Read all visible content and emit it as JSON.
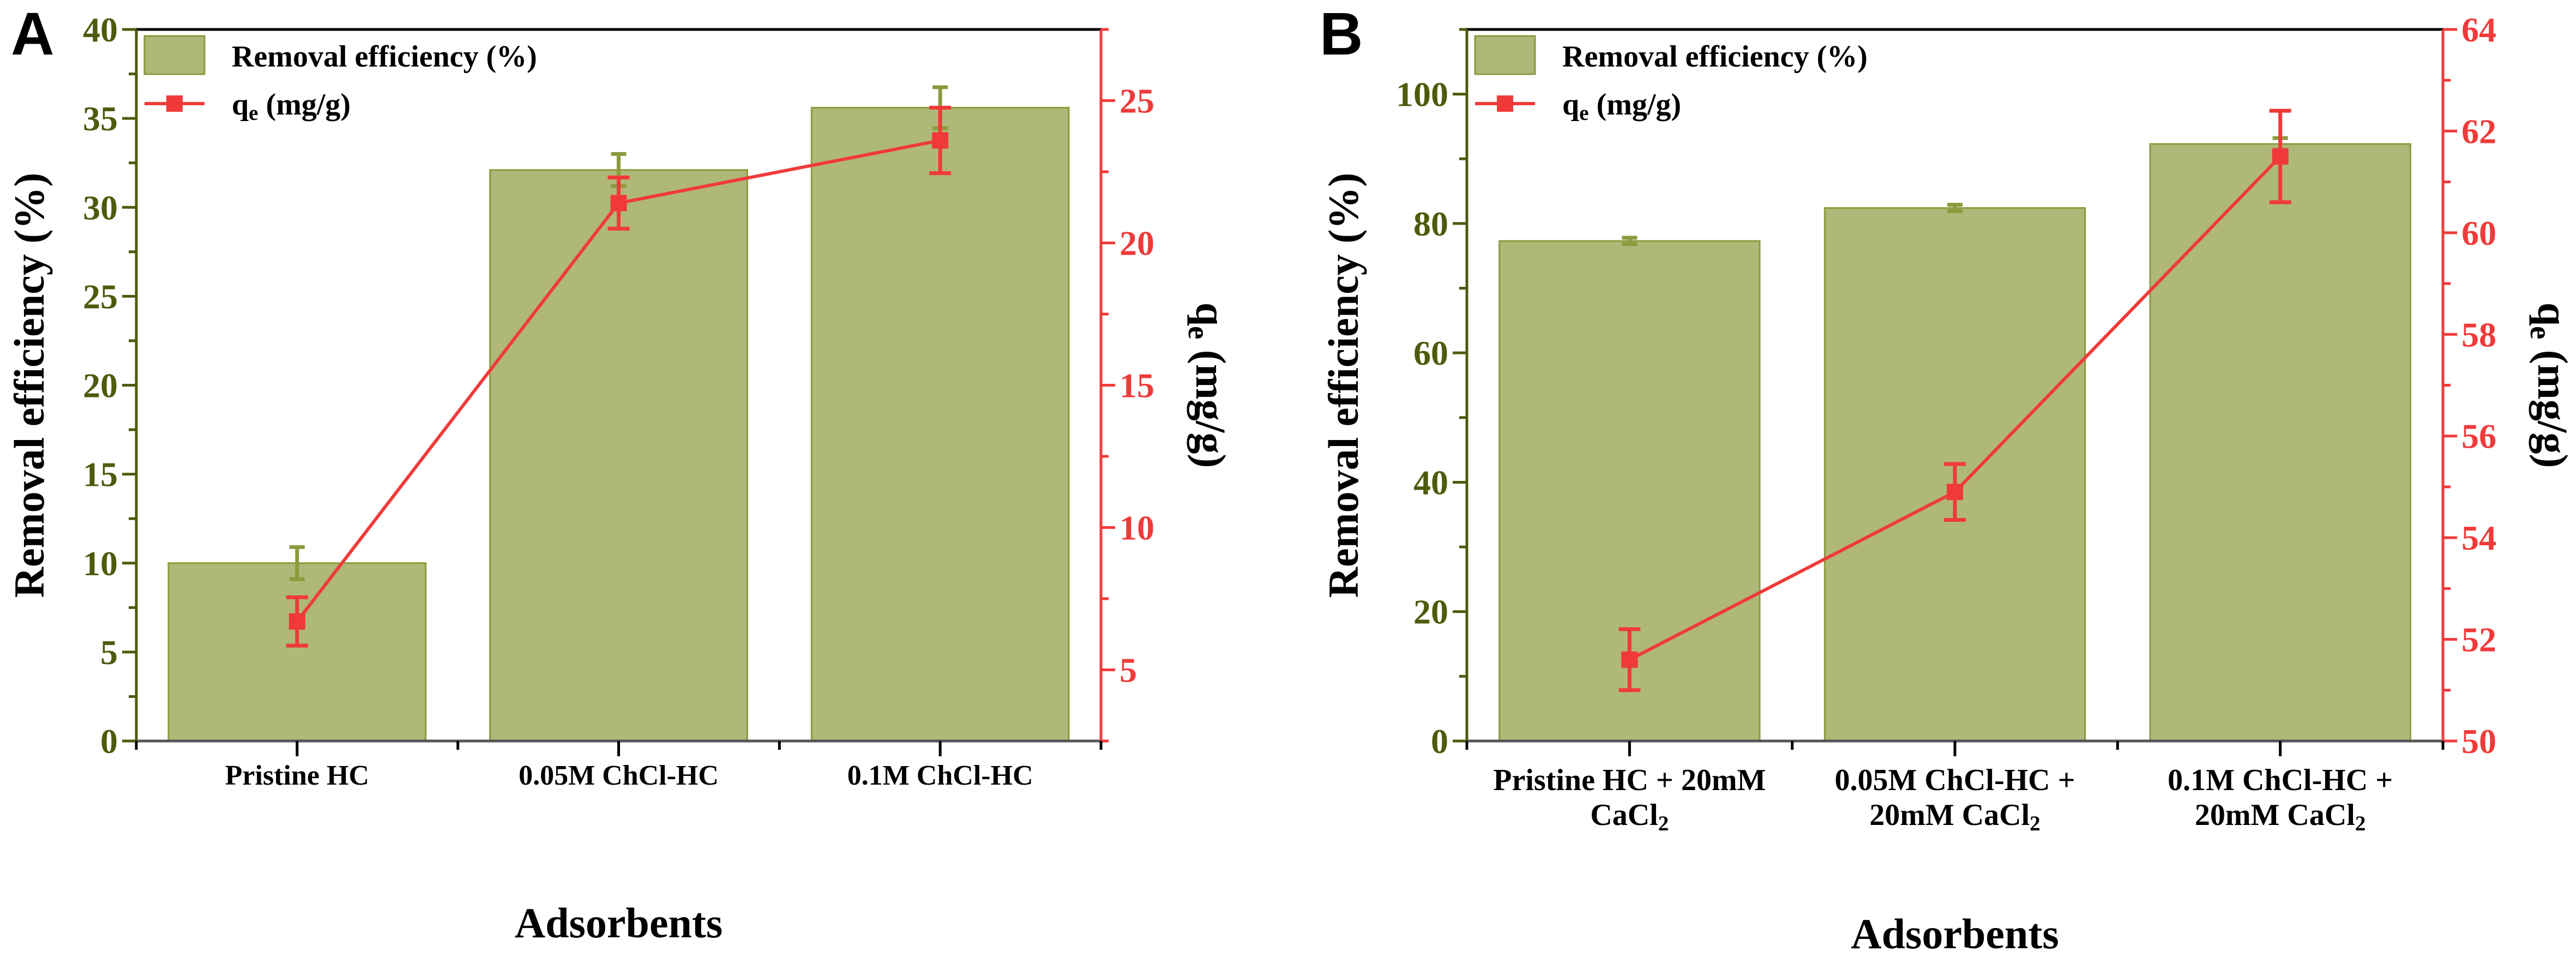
{
  "colors": {
    "bar_fill": "#b0b878",
    "bar_edge": "#8c9a3c",
    "left_axis": "#4f5a0c",
    "line": "#f03a3a",
    "frame": "#000000"
  },
  "chart_data": [
    {
      "panel_label": "A",
      "type": "bar+line",
      "categories": [
        "Pristine HC",
        "0.05M ChCl-HC",
        "0.1M ChCl-HC"
      ],
      "xlabel": "Adsorbents",
      "ylabel": "Removal efficiency (%)",
      "y2label": {
        "main": "q",
        "sub": "e",
        "rest": " (mg/g)"
      },
      "ylim": [
        0,
        40
      ],
      "yticks": [
        0,
        5,
        10,
        15,
        20,
        25,
        30,
        35,
        40
      ],
      "yminor": 2.5,
      "y2lim": [
        2.5,
        27.5
      ],
      "y2ticks": [
        5,
        10,
        15,
        20,
        25
      ],
      "y2minor": 2.5,
      "legend": {
        "bar": "Removal efficiency (%)",
        "line": {
          "main": "q",
          "sub": "e",
          "rest": " (mg/g)"
        },
        "placement": "top-left"
      },
      "bars": {
        "name": "Removal efficiency (%)",
        "values": [
          10.0,
          32.1,
          35.6
        ],
        "errors": [
          0.9,
          0.9,
          1.15
        ]
      },
      "line": {
        "name": "qe (mg/g)",
        "values": [
          6.7,
          21.4,
          23.6
        ],
        "errors": [
          0.85,
          0.9,
          1.15
        ]
      },
      "rotated_labels": false
    },
    {
      "panel_label": "B",
      "type": "bar+line",
      "categories": [
        {
          "text": "Pristine HC + 20mM CaCl",
          "sub": "2"
        },
        {
          "text": "0.05M ChCl-HC  + 20mM CaCl",
          "sub": "2"
        },
        {
          "text": "0.1M ChCl-HC  + 20mM CaCl",
          "sub": "2"
        }
      ],
      "xlabel": "Adsorbents",
      "ylabel": "Removal efficiency (%)",
      "y2label": {
        "main": "q",
        "sub": "e",
        "rest": " (mg/g)"
      },
      "ylim": [
        0,
        110
      ],
      "yticks": [
        0,
        20,
        40,
        60,
        80,
        100
      ],
      "yminor": 10,
      "y2lim": [
        50,
        64
      ],
      "y2ticks": [
        50,
        52,
        54,
        56,
        58,
        60,
        62,
        64
      ],
      "y2minor": 1,
      "legend": {
        "bar": "Removal efficiency (%)",
        "line": {
          "main": "q",
          "sub": "e",
          "rest": " (mg/g)"
        },
        "placement": "top-left"
      },
      "bars": {
        "name": "Removal efficiency (%)",
        "values": [
          77.3,
          82.4,
          92.3
        ],
        "errors": [
          0.5,
          0.5,
          0.9
        ]
      },
      "line": {
        "name": "qe (mg/g)",
        "values": [
          51.6,
          54.9,
          61.5
        ],
        "errors": [
          0.6,
          0.55,
          0.9
        ]
      },
      "rotated_labels": true
    }
  ]
}
